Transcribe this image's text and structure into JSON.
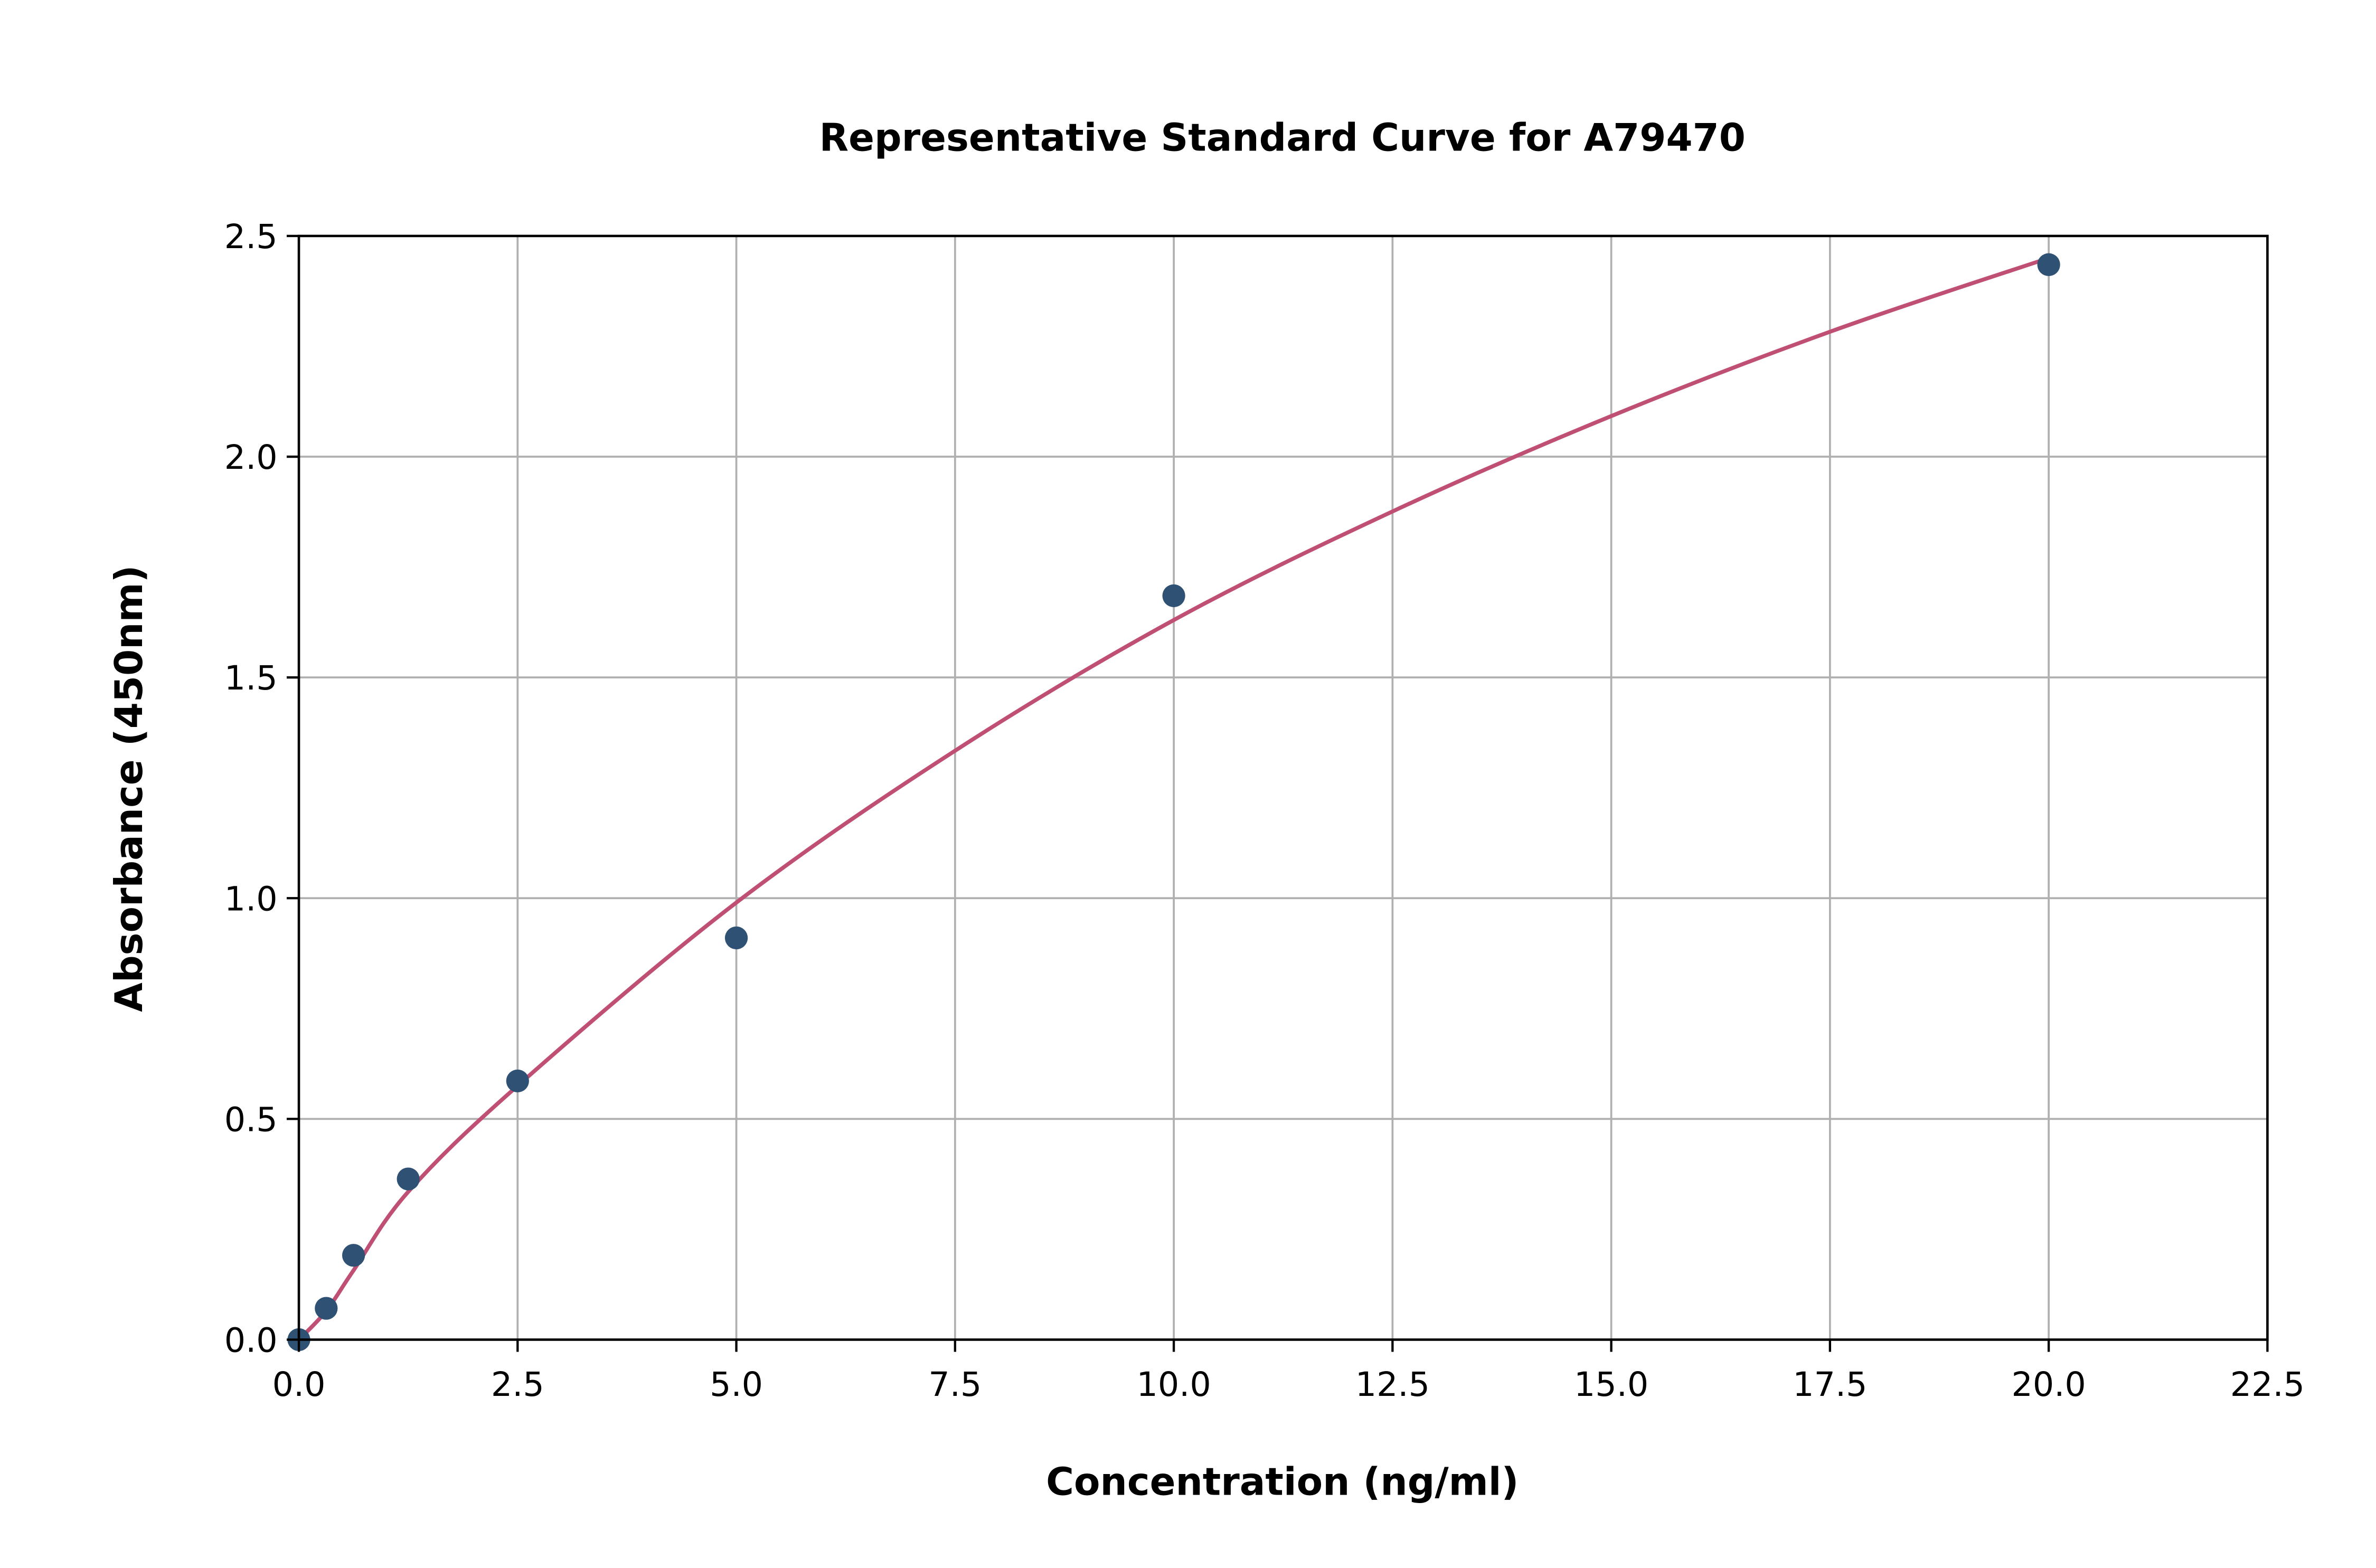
{
  "chart_data": {
    "type": "scatter",
    "title": "Representative Standard Curve for A79470",
    "xlabel": "Concentration (ng/ml)",
    "ylabel": "Absorbance (450nm)",
    "xlim": [
      0,
      22.5
    ],
    "ylim": [
      0,
      2.5
    ],
    "xticks": [
      "0.0",
      "2.5",
      "5.0",
      "7.5",
      "10.0",
      "12.5",
      "15.0",
      "17.5",
      "20.0",
      "22.5"
    ],
    "yticks": [
      "0.0",
      "0.5",
      "1.0",
      "1.5",
      "2.0",
      "2.5"
    ],
    "grid": true,
    "points": {
      "x": [
        0,
        0.3125,
        0.625,
        1.25,
        2.5,
        5,
        10,
        20
      ],
      "y": [
        0.0,
        0.071,
        0.191,
        0.364,
        0.586,
        0.91,
        1.685,
        2.435
      ]
    },
    "fit_curve": {
      "x": [
        0,
        0.3125,
        0.625,
        1.25,
        2.5,
        5,
        7.5,
        10,
        12.5,
        15,
        17.5,
        20
      ],
      "y": [
        0,
        0.065,
        0.157,
        0.335,
        0.575,
        0.99,
        1.334,
        1.63,
        1.876,
        2.092,
        2.283,
        2.45
      ]
    },
    "colors": {
      "points": "#2f5173",
      "curve": "#c04f74",
      "grid": "#b0b0b0"
    }
  }
}
